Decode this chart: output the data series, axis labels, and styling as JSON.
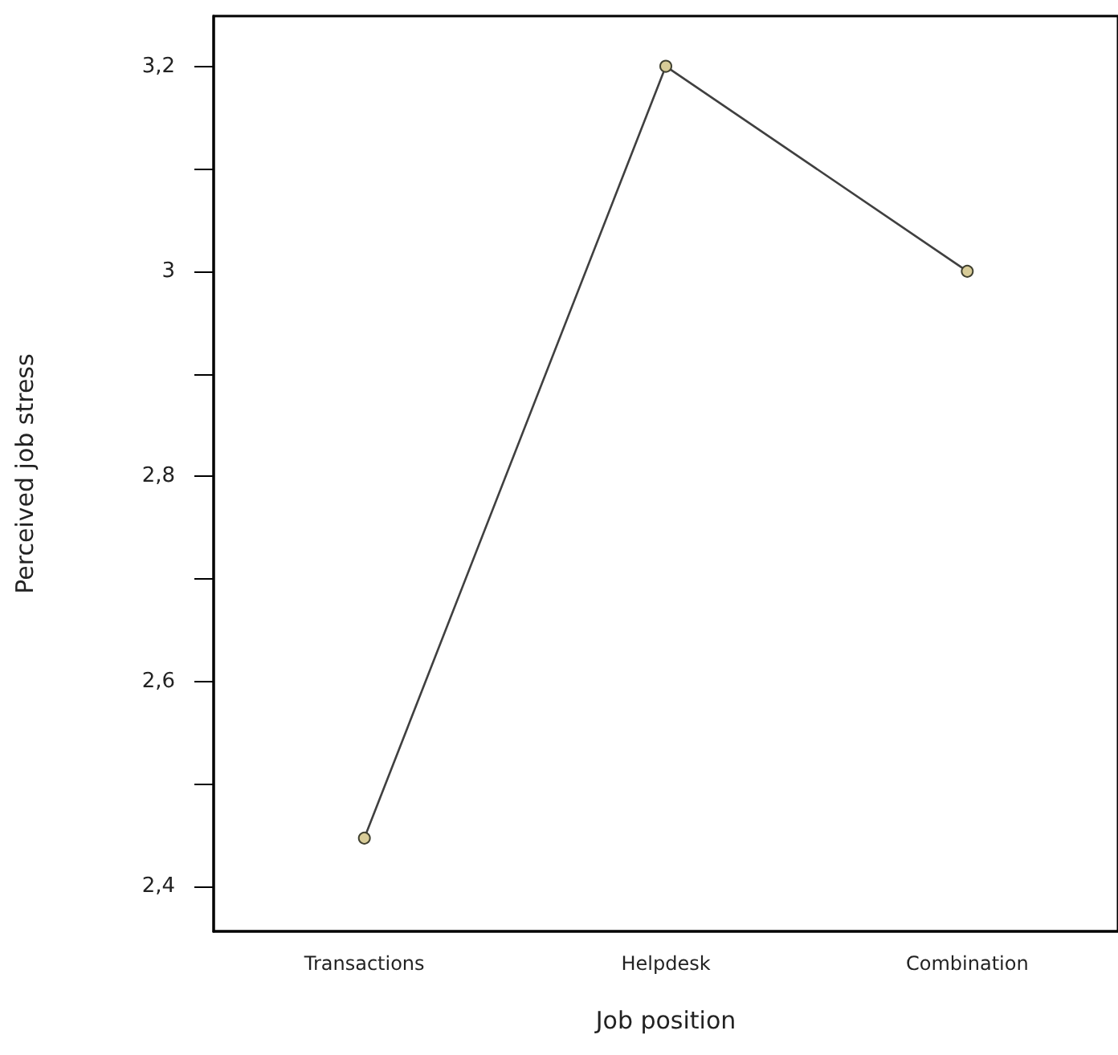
{
  "chart_data": {
    "type": "line",
    "xlabel": "Job position",
    "ylabel": "Perceived job stress",
    "categories": [
      "Transactions",
      "Helpdesk",
      "Combination"
    ],
    "series": [
      {
        "color": "#404040",
        "values": [
          2.447,
          3.2,
          3.0
        ]
      }
    ],
    "marker": "circle",
    "line_style": "solid",
    "grid": false,
    "ylim": [
      2.356,
      3.249
    ],
    "yticks": [
      {
        "value": 2.4,
        "label": "2,4"
      },
      {
        "value": 2.5,
        "label": null
      },
      {
        "value": 2.6,
        "label": "2,6"
      },
      {
        "value": 2.7,
        "label": null
      },
      {
        "value": 2.8,
        "label": "2,8"
      },
      {
        "value": 2.9,
        "label": null
      },
      3,
      {
        "value": 3.1,
        "label": null
      },
      {
        "value": 3.2,
        "label": "3,2"
      }
    ]
  }
}
